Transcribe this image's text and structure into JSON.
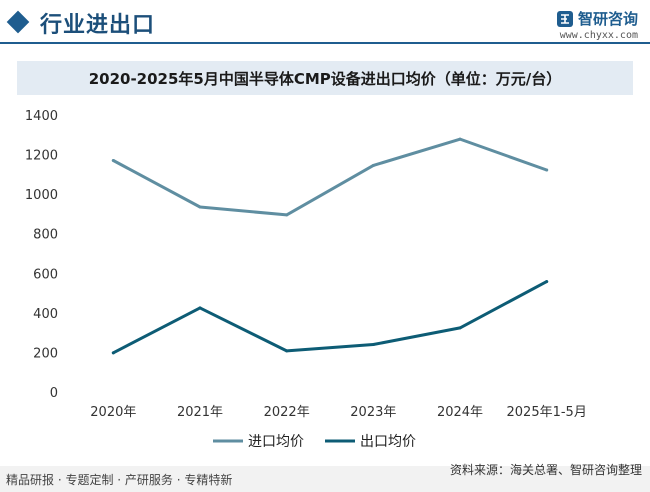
{
  "header": {
    "section_title": "行业进出口",
    "brand_name": "智研咨询",
    "brand_url": "www.chyxx.com"
  },
  "chart_data": {
    "type": "line",
    "title": "2020-2025年5月中国半导体CMP设备进出口均价（单位：万元/台）",
    "categories": [
      "2020年",
      "2021年",
      "2022年",
      "2023年",
      "2024年",
      "2025年1-5月"
    ],
    "series": [
      {
        "name": "进口均价",
        "color": "#5f8ea1",
        "values": [
          1170,
          935,
          895,
          1145,
          1278,
          1122
        ]
      },
      {
        "name": "出口均价",
        "color": "#0d5c75",
        "values": [
          198,
          425,
          208,
          240,
          324,
          558
        ]
      }
    ],
    "ylim": [
      0,
      1400
    ],
    "yticks": [
      0,
      200,
      400,
      600,
      800,
      1000,
      1200,
      1400
    ],
    "grid": false,
    "legend": "bottom-center"
  },
  "footer": {
    "left": "精品研报 · 专题定制 · 产研服务 · 专精特新",
    "source": "资料来源：海关总署、智研咨询整理"
  }
}
